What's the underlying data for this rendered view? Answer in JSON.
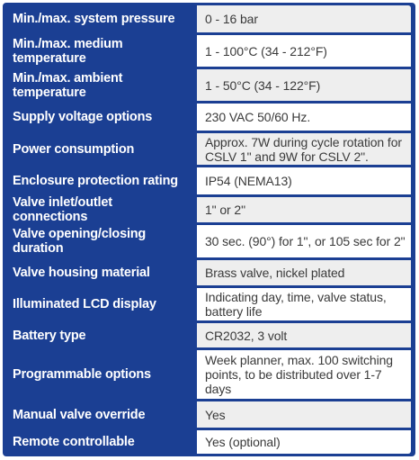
{
  "specs": [
    {
      "label": "Min./max. system pressure",
      "value": "0 - 16 bar"
    },
    {
      "label": "Min./max. medium temperature",
      "value": "1 - 100°C (34 - 212°F)"
    },
    {
      "label": "Min./max. ambient temperature",
      "value": "1 - 50°C (34 - 122°F)"
    },
    {
      "label": "Supply voltage options",
      "value": "230 VAC 50/60 Hz."
    },
    {
      "label": "Power consumption",
      "value": "Approx. 7W during cycle rotation for CSLV 1\" and 9W for CSLV 2\"."
    },
    {
      "label": "Enclosure protection rating",
      "value": "IP54 (NEMA13)"
    },
    {
      "label": "Valve inlet/outlet connections",
      "value": "1\" or 2\""
    },
    {
      "label": "Valve opening/closing duration",
      "value": "30 sec. (90°) for 1\", or 105 sec for 2\""
    },
    {
      "label": "Valve housing material",
      "value": "Brass valve, nickel plated"
    },
    {
      "label": "Illuminated LCD display",
      "value": "Indicating day, time, valve status, battery life"
    },
    {
      "label": "Battery type",
      "value": "CR2032, 3 volt"
    },
    {
      "label": "Programmable options",
      "value": "Week planner, max. 100 switching points, to be distributed over 1-7 days"
    },
    {
      "label": "Manual valve override",
      "value": "Yes"
    },
    {
      "label": "Remote controllable",
      "value": "Yes (optional)"
    }
  ]
}
